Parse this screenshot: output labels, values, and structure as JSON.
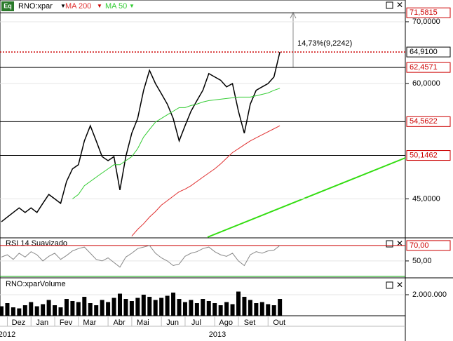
{
  "header": {
    "icon": "Eq"
  },
  "chart_data": [
    {
      "type": "line",
      "log_scale": true,
      "grid": true,
      "categories": [
        null,
        "Dez",
        null,
        null,
        null,
        "Jan",
        null,
        null,
        null,
        "Fev",
        null,
        null,
        null,
        "Mar",
        null,
        null,
        null,
        null,
        "Abr",
        null,
        null,
        null,
        "Mai",
        null,
        null,
        null,
        null,
        "Jun",
        null,
        null,
        null,
        "Jul",
        null,
        null,
        null,
        null,
        "Ago",
        null,
        null,
        null,
        "Set",
        null,
        null,
        null,
        null,
        "Out",
        null,
        null
      ],
      "x_group_labels": [
        "2012",
        "2013"
      ],
      "ylim": [
        40.9,
        73.9
      ],
      "yticks": [
        {
          "value": 70,
          "label": "70,0000"
        },
        {
          "value": 60,
          "label": "60,0000"
        },
        {
          "value": 45,
          "label": "45,0000"
        }
      ],
      "series": [
        {
          "name": "RNO:xpar",
          "color": "#000000",
          "values": [
            42.5,
            43,
            43.5,
            44,
            43.5,
            44,
            43.5,
            44.5,
            45.5,
            45,
            44.5,
            47,
            48.5,
            49,
            52,
            54,
            52,
            50,
            49.5,
            50,
            46,
            50,
            53,
            55,
            59,
            62,
            60,
            58.5,
            57,
            55,
            52,
            54,
            56,
            57.5,
            59,
            61.5,
            61,
            60.5,
            59.5,
            60,
            56,
            53,
            57,
            59,
            59.5,
            60,
            61,
            64.91
          ]
        },
        {
          "name": "MA 200",
          "color": "#e03030",
          "values": [
            null,
            null,
            null,
            null,
            null,
            null,
            null,
            null,
            null,
            null,
            null,
            null,
            null,
            null,
            null,
            null,
            null,
            null,
            null,
            null,
            null,
            null,
            41,
            41.7,
            42.3,
            43,
            43.6,
            44.3,
            44.8,
            45.3,
            45.8,
            46.1,
            46.5,
            47,
            47.5,
            48,
            48.5,
            49.1,
            49.8,
            50.5,
            51,
            51.5,
            52,
            52.4,
            52.8,
            53.2,
            53.6,
            54
          ]
        },
        {
          "name": "MA 50",
          "color": "#33cc33",
          "values": [
            null,
            null,
            null,
            null,
            null,
            null,
            null,
            null,
            null,
            null,
            null,
            null,
            45,
            45.5,
            46.5,
            47,
            47.5,
            48,
            48.5,
            49,
            49,
            49.5,
            50,
            51,
            52.5,
            53.5,
            54.5,
            55,
            55.5,
            56,
            56.5,
            56.5,
            56.8,
            57,
            57.3,
            57.5,
            57.6,
            57.7,
            57.8,
            57.9,
            58,
            58,
            58,
            58.2,
            58.4,
            58.6,
            59,
            59.3
          ]
        }
      ],
      "levels": [
        {
          "value": 71.5815,
          "label": "71,5815",
          "color": "#000000",
          "label_color": "#cc0000"
        },
        {
          "value": 64.91,
          "label": "64,9100",
          "color": "#cc0000",
          "label_color": "#000000",
          "dotted": true
        },
        {
          "value": 62.4571,
          "label": "62,4571",
          "color": "#000000",
          "label_color": "#cc0000"
        },
        {
          "value": 54.5622,
          "label": "54,5622",
          "color": "#000000",
          "label_color": "#cc0000"
        },
        {
          "value": 50.1462,
          "label": "50,1462",
          "color": "#000000",
          "label_color": "#cc0000"
        }
      ],
      "annotation": "14,73%(9,2242)"
    },
    {
      "type": "line",
      "title": "RSI 14 Suavizado",
      "ylim": [
        29,
        79
      ],
      "yticks": [
        {
          "value": 50,
          "label": "50,00"
        }
      ],
      "series": [
        {
          "color": "#888888",
          "values": [
            55,
            58,
            52,
            60,
            55,
            62,
            58,
            50,
            56,
            60,
            52,
            57,
            63,
            66,
            68,
            60,
            52,
            50,
            54,
            48,
            42,
            55,
            60,
            66,
            68,
            70,
            60,
            54,
            50,
            44,
            46,
            56,
            60,
            62,
            66,
            68,
            62,
            58,
            56,
            60,
            50,
            44,
            58,
            62,
            60,
            63,
            64,
            70
          ]
        }
      ],
      "levels": [
        {
          "value": 70,
          "label": "70,00",
          "color": "#cc0000",
          "label_color": "#cc0000"
        },
        {
          "value": 30,
          "color": "#00a000"
        }
      ]
    },
    {
      "type": "bar",
      "title": "RNO:xparVolume",
      "ylim": [
        0,
        3470000
      ],
      "yticks": [
        {
          "value": 2000000,
          "label": "2.000.000"
        }
      ],
      "series": [
        {
          "color": "#000000",
          "values": [
            900000,
            1200000,
            800000,
            700000,
            1000000,
            1300000,
            900000,
            1100000,
            1500000,
            1000000,
            800000,
            1600000,
            1400000,
            1300000,
            1800000,
            1200000,
            1000000,
            1500000,
            1300000,
            1700000,
            2100000,
            1600000,
            1400000,
            1700000,
            2000000,
            1800000,
            1500000,
            1700000,
            1900000,
            2200000,
            1600000,
            1300000,
            1500000,
            1200000,
            1600000,
            1400000,
            1200000,
            1000000,
            1300000,
            1100000,
            2300000,
            1800000,
            1500000,
            1200000,
            1300000,
            1100000,
            1000000,
            1600000
          ]
        }
      ]
    }
  ]
}
